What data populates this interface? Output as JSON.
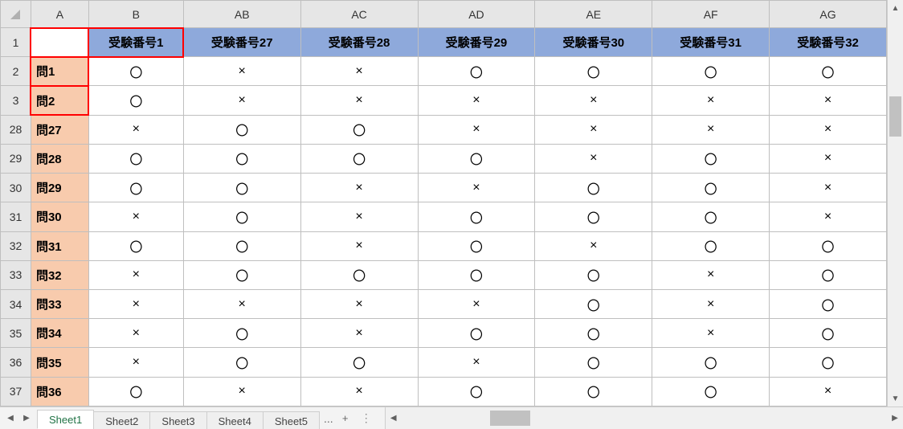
{
  "columns": {
    "corner": "",
    "letters": [
      "A",
      "B",
      "AB",
      "AC",
      "AD",
      "AE",
      "AF",
      "AG"
    ]
  },
  "row_numbers": [
    "1",
    "2",
    "3",
    "28",
    "29",
    "30",
    "31",
    "32",
    "33",
    "34",
    "35",
    "36",
    "37"
  ],
  "header_row": {
    "blank": "",
    "labels": [
      "受験番号1",
      "受験番号27",
      "受験番号28",
      "受験番号29",
      "受験番号30",
      "受験番号31",
      "受験番号32"
    ]
  },
  "rows": [
    {
      "q": "問1",
      "v": [
        "〇",
        "×",
        "×",
        "〇",
        "〇",
        "〇",
        "〇"
      ],
      "red_q": true
    },
    {
      "q": "問2",
      "v": [
        "〇",
        "×",
        "×",
        "×",
        "×",
        "×",
        "×"
      ],
      "red_q": true
    },
    {
      "q": "問27",
      "v": [
        "×",
        "〇",
        "〇",
        "×",
        "×",
        "×",
        "×"
      ]
    },
    {
      "q": "問28",
      "v": [
        "〇",
        "〇",
        "〇",
        "〇",
        "×",
        "〇",
        "×"
      ]
    },
    {
      "q": "問29",
      "v": [
        "〇",
        "〇",
        "×",
        "×",
        "〇",
        "〇",
        "×"
      ]
    },
    {
      "q": "問30",
      "v": [
        "×",
        "〇",
        "×",
        "〇",
        "〇",
        "〇",
        "×"
      ]
    },
    {
      "q": "問31",
      "v": [
        "〇",
        "〇",
        "×",
        "〇",
        "×",
        "〇",
        "〇"
      ]
    },
    {
      "q": "問32",
      "v": [
        "×",
        "〇",
        "〇",
        "〇",
        "〇",
        "×",
        "〇"
      ]
    },
    {
      "q": "問33",
      "v": [
        "×",
        "×",
        "×",
        "×",
        "〇",
        "×",
        "〇"
      ]
    },
    {
      "q": "問34",
      "v": [
        "×",
        "〇",
        "×",
        "〇",
        "〇",
        "×",
        "〇"
      ]
    },
    {
      "q": "問35",
      "v": [
        "×",
        "〇",
        "〇",
        "×",
        "〇",
        "〇",
        "〇"
      ]
    },
    {
      "q": "問36",
      "v": [
        "〇",
        "×",
        "×",
        "〇",
        "〇",
        "〇",
        "×"
      ]
    }
  ],
  "red_header_cells": [
    "blank",
    0
  ],
  "sheets": {
    "tabs": [
      "Sheet1",
      "Sheet2",
      "Sheet3",
      "Sheet4",
      "Sheet5"
    ],
    "active": 0,
    "more": "...",
    "plus": "+"
  },
  "colors": {
    "row_label_bg": "#f8cbad",
    "header_bg": "#8ea9db",
    "red": "#ff0000",
    "grid_hdr_bg": "#e6e6e6",
    "tab_active_fg": "#217346"
  },
  "col_widths": {
    "row_hdr": 38,
    "A": 72,
    "B": 118,
    "wide": 146
  }
}
